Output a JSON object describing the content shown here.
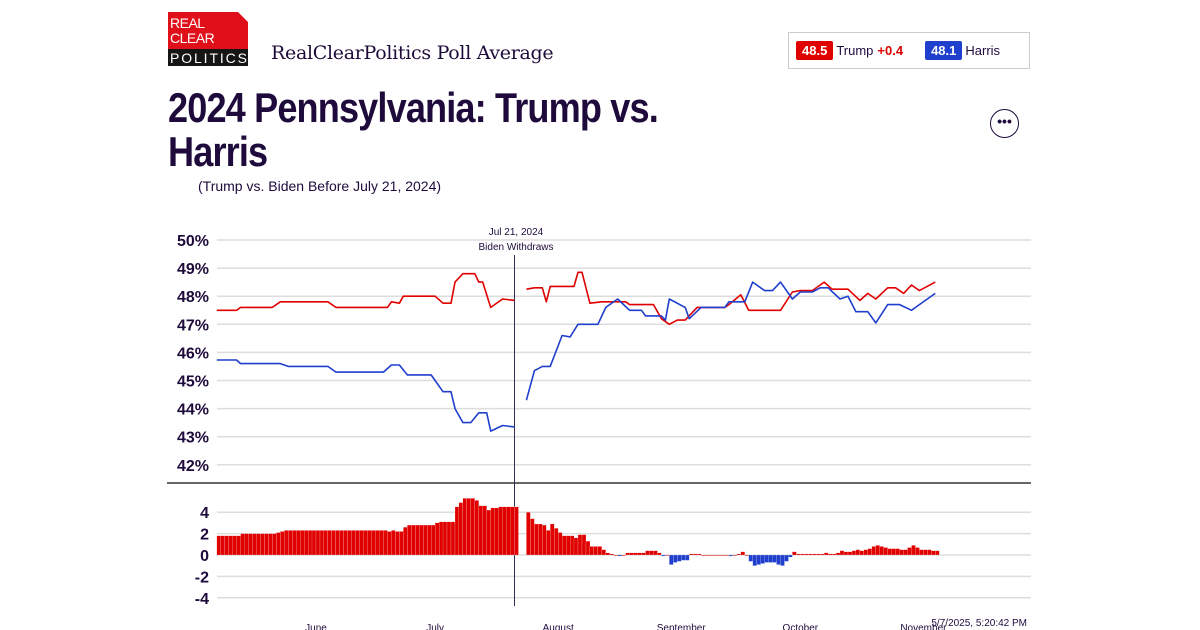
{
  "header": {
    "logo_text": [
      "REAL",
      "CLEAR",
      "POLITICS"
    ],
    "brand": "RealClearPolitics Poll Average",
    "title": "2024 Pennsylvania: Trump vs. Harris",
    "subtitle": "(Trump vs. Biden Before July 21, 2024)",
    "more_icon": "ellipsis-icon"
  },
  "legend": {
    "trump_value": "48.5",
    "trump_label": "Trump",
    "trump_spread": "+0.4",
    "harris_value": "48.1",
    "harris_label": "Harris"
  },
  "colors": {
    "trump": "#e00000",
    "harris": "#1f3fcc",
    "text": "#1e0b3c",
    "grid": "#dddddd"
  },
  "timestamp": "5/7/2025, 5:20:42 PM",
  "chart_data": {
    "type": "line",
    "x_range": [
      "2024-05-07",
      "2024-11-04"
    ],
    "y_range": [
      42,
      50
    ],
    "y_ticks": [
      "50%",
      "49%",
      "48%",
      "47%",
      "46%",
      "45%",
      "44%",
      "43%",
      "42%"
    ],
    "x_ticks": [
      {
        "date": "2024-06-01",
        "label": "June"
      },
      {
        "date": "2024-07-01",
        "label": "July"
      },
      {
        "date": "2024-08-01",
        "label": "August"
      },
      {
        "date": "2024-09-01",
        "label": "September"
      },
      {
        "date": "2024-10-01",
        "label": "October"
      },
      {
        "date": "2024-11-01",
        "label": "November"
      }
    ],
    "grid": true,
    "annotation": {
      "date": "2024-07-21",
      "line1": "Jul 21, 2024",
      "line2": "Biden Withdraws"
    },
    "series": [
      {
        "key": "trump",
        "points": [
          [
            "2024-05-07",
            47.5
          ],
          [
            "2024-05-12",
            47.5
          ],
          [
            "2024-05-13",
            47.6
          ],
          [
            "2024-05-21",
            47.6
          ],
          [
            "2024-05-23",
            47.8
          ],
          [
            "2024-06-04",
            47.8
          ],
          [
            "2024-06-06",
            47.6
          ],
          [
            "2024-06-19",
            47.6
          ],
          [
            "2024-06-20",
            47.8
          ],
          [
            "2024-06-22",
            47.75
          ],
          [
            "2024-06-23",
            48.0
          ],
          [
            "2024-07-01",
            48.0
          ],
          [
            "2024-07-03",
            47.75
          ],
          [
            "2024-07-05",
            47.75
          ],
          [
            "2024-07-06",
            48.5
          ],
          [
            "2024-07-08",
            48.8
          ],
          [
            "2024-07-11",
            48.8
          ],
          [
            "2024-07-12",
            48.5
          ],
          [
            "2024-07-13",
            48.5
          ],
          [
            "2024-07-15",
            47.6
          ],
          [
            "2024-07-18",
            47.9
          ],
          [
            "2024-07-21",
            47.85
          ],
          null,
          [
            "2024-07-24",
            48.25
          ],
          [
            "2024-07-26",
            48.3
          ],
          [
            "2024-07-28",
            48.3
          ],
          [
            "2024-07-29",
            47.8
          ],
          [
            "2024-07-30",
            48.35
          ],
          [
            "2024-08-05",
            48.35
          ],
          [
            "2024-08-06",
            48.85
          ],
          [
            "2024-08-07",
            48.85
          ],
          [
            "2024-08-09",
            47.75
          ],
          [
            "2024-08-12",
            47.8
          ],
          [
            "2024-08-18",
            47.8
          ],
          [
            "2024-08-19",
            47.7
          ],
          [
            "2024-08-25",
            47.7
          ],
          [
            "2024-08-27",
            47.2
          ],
          [
            "2024-08-29",
            47.0
          ],
          [
            "2024-08-31",
            47.15
          ],
          [
            "2024-09-02",
            47.15
          ],
          [
            "2024-09-05",
            47.6
          ],
          [
            "2024-09-12",
            47.6
          ],
          [
            "2024-09-13",
            47.7
          ],
          [
            "2024-09-16",
            48.05
          ],
          [
            "2024-09-18",
            47.5
          ],
          [
            "2024-09-26",
            47.5
          ],
          [
            "2024-09-29",
            48.15
          ],
          [
            "2024-10-01",
            48.2
          ],
          [
            "2024-10-04",
            48.2
          ],
          [
            "2024-10-07",
            48.5
          ],
          [
            "2024-10-09",
            48.25
          ],
          [
            "2024-10-13",
            48.25
          ],
          [
            "2024-10-16",
            47.85
          ],
          [
            "2024-10-18",
            48.1
          ],
          [
            "2024-10-20",
            47.9
          ],
          [
            "2024-10-23",
            48.3
          ],
          [
            "2024-10-25",
            48.3
          ],
          [
            "2024-10-27",
            48.1
          ],
          [
            "2024-10-29",
            48.4
          ],
          [
            "2024-10-31",
            48.2
          ],
          [
            "2024-11-04",
            48.5
          ]
        ]
      },
      {
        "key": "harris",
        "points": [
          [
            "2024-05-07",
            45.73
          ],
          [
            "2024-05-12",
            45.73
          ],
          [
            "2024-05-13",
            45.6
          ],
          [
            "2024-05-23",
            45.6
          ],
          [
            "2024-05-25",
            45.5
          ],
          [
            "2024-06-04",
            45.5
          ],
          [
            "2024-06-06",
            45.3
          ],
          [
            "2024-06-18",
            45.3
          ],
          [
            "2024-06-20",
            45.55
          ],
          [
            "2024-06-22",
            45.55
          ],
          [
            "2024-06-24",
            45.2
          ],
          [
            "2024-06-30",
            45.2
          ],
          [
            "2024-07-01",
            45.0
          ],
          [
            "2024-07-03",
            44.6
          ],
          [
            "2024-07-05",
            44.6
          ],
          [
            "2024-07-06",
            44.0
          ],
          [
            "2024-07-08",
            43.5
          ],
          [
            "2024-07-10",
            43.5
          ],
          [
            "2024-07-12",
            43.85
          ],
          [
            "2024-07-14",
            43.85
          ],
          [
            "2024-07-15",
            43.2
          ],
          [
            "2024-07-18",
            43.4
          ],
          [
            "2024-07-21",
            43.35
          ],
          null,
          [
            "2024-07-24",
            44.3
          ],
          [
            "2024-07-26",
            45.35
          ],
          [
            "2024-07-28",
            45.5
          ],
          [
            "2024-07-30",
            45.5
          ],
          [
            "2024-08-02",
            46.6
          ],
          [
            "2024-08-04",
            46.55
          ],
          [
            "2024-08-06",
            47.0
          ],
          [
            "2024-08-11",
            47.0
          ],
          [
            "2024-08-13",
            47.6
          ],
          [
            "2024-08-16",
            47.9
          ],
          [
            "2024-08-19",
            47.5
          ],
          [
            "2024-08-22",
            47.5
          ],
          [
            "2024-08-23",
            47.3
          ],
          [
            "2024-08-27",
            47.3
          ],
          [
            "2024-08-28",
            47.15
          ],
          [
            "2024-08-29",
            47.9
          ],
          [
            "2024-09-02",
            47.6
          ],
          [
            "2024-09-03",
            47.2
          ],
          [
            "2024-09-06",
            47.6
          ],
          [
            "2024-09-12",
            47.6
          ],
          [
            "2024-09-13",
            47.8
          ],
          [
            "2024-09-17",
            47.8
          ],
          [
            "2024-09-19",
            48.5
          ],
          [
            "2024-09-22",
            48.2
          ],
          [
            "2024-09-24",
            48.2
          ],
          [
            "2024-09-26",
            48.5
          ],
          [
            "2024-09-29",
            47.9
          ],
          [
            "2024-10-01",
            48.15
          ],
          [
            "2024-10-04",
            48.15
          ],
          [
            "2024-10-06",
            48.3
          ],
          [
            "2024-10-08",
            48.3
          ],
          [
            "2024-10-11",
            47.9
          ],
          [
            "2024-10-13",
            48.0
          ],
          [
            "2024-10-15",
            47.45
          ],
          [
            "2024-10-18",
            47.45
          ],
          [
            "2024-10-20",
            47.05
          ],
          [
            "2024-10-23",
            47.7
          ],
          [
            "2024-10-26",
            47.7
          ],
          [
            "2024-10-29",
            47.5
          ],
          [
            "2024-10-30",
            47.6
          ],
          [
            "2024-11-04",
            48.1
          ]
        ]
      }
    ],
    "spread_panel": {
      "type": "bar",
      "y_range": [
        -5,
        5
      ],
      "y_ticks": [
        "4",
        "2",
        "0",
        "-2",
        "-4"
      ],
      "value": "trump minus harris"
    }
  }
}
